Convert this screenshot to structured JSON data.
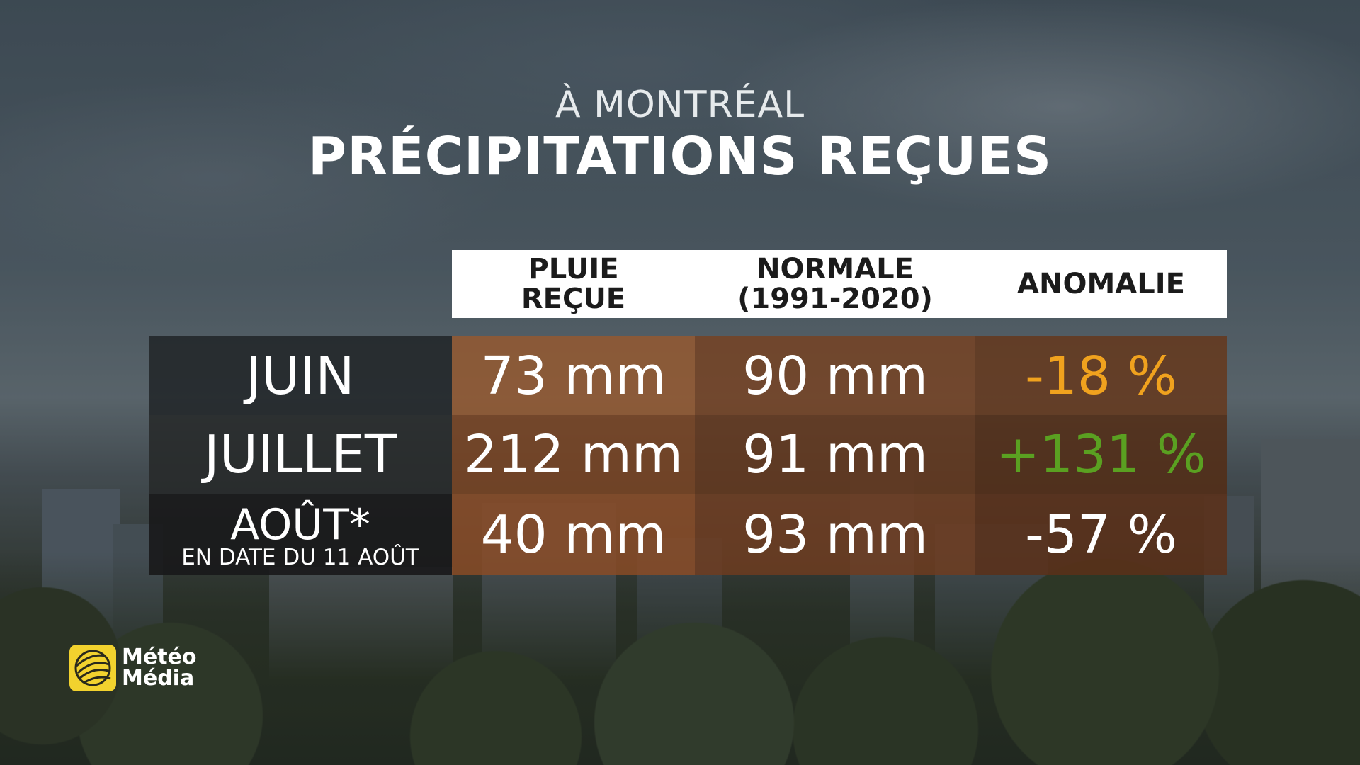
{
  "heading": {
    "subtitle": "À MONTRÉAL",
    "title": "PRÉCIPITATIONS REÇUES"
  },
  "columns": {
    "pluie": [
      "PLUIE",
      "REÇUE"
    ],
    "normale": [
      "NORMALE",
      "(1991-2020)"
    ],
    "anomalie": "ANOMALIE"
  },
  "rows": [
    {
      "month": "JUIN",
      "note": "",
      "pluie": "73 mm",
      "normale": "90 mm",
      "anomalie": "-18 %",
      "anomalie_color": "#f0a21e"
    },
    {
      "month": "JUILLET",
      "note": "",
      "pluie": "212 mm",
      "normale": "91 mm",
      "anomalie": "+131 %",
      "anomalie_color": "#5aa021"
    },
    {
      "month": "AOÛT*",
      "note": "EN DATE DU 11 AOÛT",
      "pluie": "40 mm",
      "normale": "93 mm",
      "anomalie": "-57 %",
      "anomalie_color": "#ffffff"
    }
  ],
  "logo": {
    "line1": "Météo",
    "line2": "Média",
    "icon": "meteomedia-globe-icon",
    "brand_color": "#f2d22e"
  }
}
